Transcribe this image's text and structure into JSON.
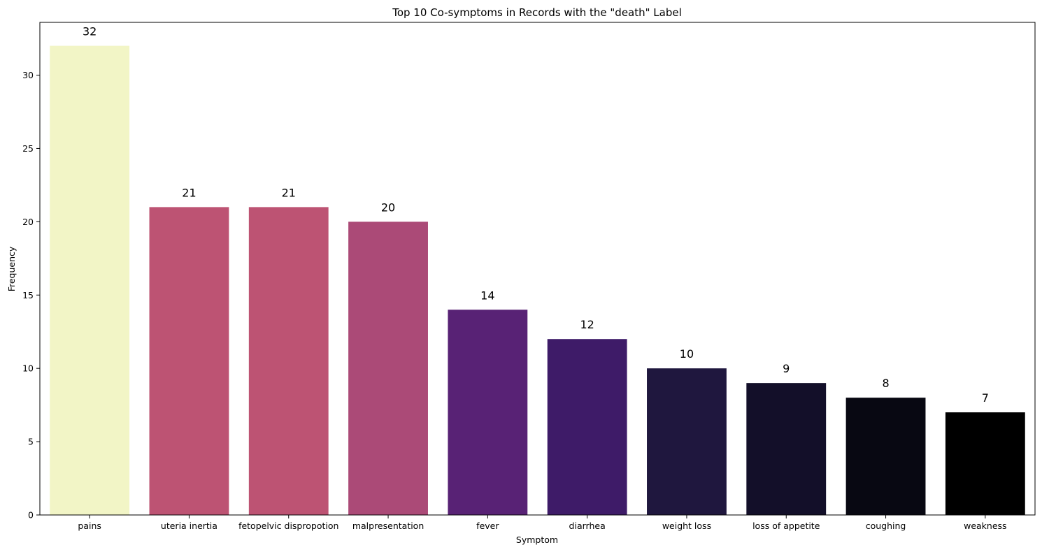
{
  "chart_data": {
    "type": "bar",
    "title": "Top 10 Co-symptoms in Records with the \"death\" Label",
    "xlabel": "Symptom",
    "ylabel": "Frequency",
    "categories": [
      "pains",
      "uteria inertia",
      "fetopelvic dispropotion",
      "malpresentation",
      "fever",
      "diarrhea",
      "weight loss",
      "loss of appetite",
      "coughing",
      "weakness"
    ],
    "values": [
      32,
      21,
      21,
      20,
      14,
      12,
      10,
      9,
      8,
      7
    ],
    "colors": [
      "#f2f5c6",
      "#bd5373",
      "#bd5373",
      "#ab4a77",
      "#582275",
      "#3e1b68",
      "#1f173e",
      "#130f29",
      "#080812",
      "#000000"
    ],
    "ylim": [
      0,
      33.6
    ],
    "yticks": [
      0,
      5,
      10,
      15,
      20,
      25,
      30
    ],
    "grid": false,
    "legend": "none"
  }
}
